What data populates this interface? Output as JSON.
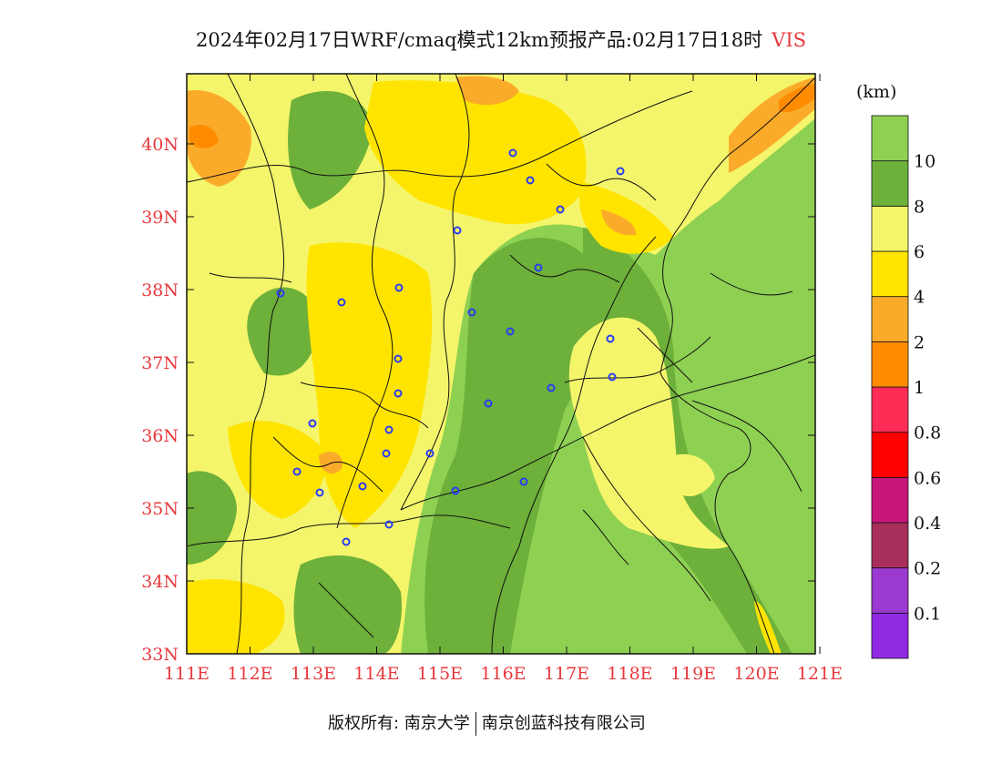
{
  "title": {
    "main": "2024年02月17日WRF/cmaq模式12km预报产品:02月17日18时",
    "variable": "VIS"
  },
  "colorbar": {
    "unit": "(km)",
    "levels": [
      {
        "label": "",
        "color": "#8f29e2"
      },
      {
        "label": "0.1",
        "color": "#9a3ad0"
      },
      {
        "label": "0.2",
        "color": "#a82e5c"
      },
      {
        "label": "0.4",
        "color": "#c8157c"
      },
      {
        "label": "0.6",
        "color": "#ff0000"
      },
      {
        "label": "0.8",
        "color": "#ff2d55"
      },
      {
        "label": "1",
        "color": "#ff8c00"
      },
      {
        "label": "2",
        "color": "#fbab2a"
      },
      {
        "label": "4",
        "color": "#ffe400"
      },
      {
        "label": "6",
        "color": "#f4f56a"
      },
      {
        "label": "8",
        "color": "#6db03a"
      },
      {
        "label": "10",
        "color": "#8ed052"
      }
    ]
  },
  "axes": {
    "lon_labels": [
      "111E",
      "112E",
      "113E",
      "114E",
      "115E",
      "116E",
      "117E",
      "118E",
      "119E",
      "120E",
      "121E"
    ],
    "lat_labels": [
      "33N",
      "34N",
      "35N",
      "36N",
      "37N",
      "38N",
      "39N",
      "40N"
    ],
    "label_color": "#e8383d"
  },
  "footer": {
    "left": "版权所有: 南京大学",
    "right": "南京创蓝科技有限公司"
  }
}
